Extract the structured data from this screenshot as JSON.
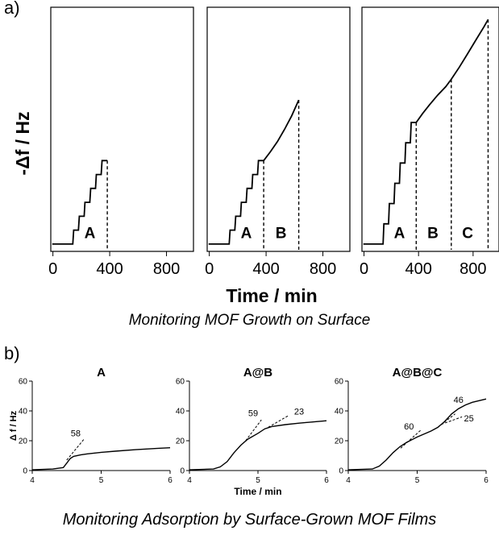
{
  "figure": {
    "panel_a_label": "a)",
    "panel_b_label": "b)",
    "caption_a": "Monitoring MOF Growth on Surface",
    "caption_b": "Monitoring Adsorption by Surface-Grown MOF Films"
  },
  "chart_data": [
    {
      "id": "a1",
      "type": "line",
      "title": "",
      "xlabel": "Time / min",
      "ylabel": "-Δf / Hz",
      "xlim": [
        -15,
        990
      ],
      "ylim": [
        0,
        100
      ],
      "xticks": [
        0,
        400,
        800
      ],
      "grid": false,
      "steps": 6,
      "t_start": 140,
      "step_dt": 40,
      "base_y": 3,
      "step_rise": 5.7,
      "markers": [
        {
          "x": 383,
          "y": 37.2
        }
      ],
      "annotations": [
        {
          "text": "A",
          "x": 260,
          "y": 5.5
        }
      ]
    },
    {
      "id": "a2",
      "type": "line",
      "title": "",
      "xlabel": "Time / min",
      "ylabel": "-Δf / Hz",
      "xlim": [
        -15,
        990
      ],
      "ylim": [
        0,
        100
      ],
      "xticks": [
        0,
        400,
        800
      ],
      "grid": false,
      "steps": 6,
      "t_start": 140,
      "step_dt": 40,
      "base_y": 3,
      "step_rise": 5.7,
      "continuation": [
        [
          383,
          37.2
        ],
        [
          430,
          40.8
        ],
        [
          480,
          45
        ],
        [
          530,
          50
        ],
        [
          580,
          55.5
        ],
        [
          630,
          62
        ]
      ],
      "markers": [
        {
          "x": 383,
          "y": 37.2
        },
        {
          "x": 630,
          "y": 62
        }
      ],
      "annotations": [
        {
          "text": "A",
          "x": 260,
          "y": 5.5
        },
        {
          "text": "B",
          "x": 505,
          "y": 5.5
        }
      ]
    },
    {
      "id": "a3",
      "type": "line",
      "title": "",
      "xlabel": "Time / min",
      "ylabel": "-Δf / Hz",
      "xlim": [
        -15,
        990
      ],
      "ylim": [
        0,
        100
      ],
      "xticks": [
        0,
        400,
        800
      ],
      "grid": false,
      "steps": 6,
      "t_start": 140,
      "step_dt": 40,
      "base_y": 3,
      "step_rise": 8.3,
      "continuation": [
        [
          383,
          52.8
        ],
        [
          430,
          56.5
        ],
        [
          480,
          60
        ],
        [
          540,
          64
        ],
        [
          600,
          67.5
        ],
        [
          640,
          70.5
        ],
        [
          700,
          75.5
        ],
        [
          760,
          81
        ],
        [
          820,
          86.5
        ],
        [
          880,
          92
        ],
        [
          910,
          95
        ]
      ],
      "markers": [
        {
          "x": 383,
          "y": 52.8
        },
        {
          "x": 640,
          "y": 70.5
        },
        {
          "x": 910,
          "y": 95
        }
      ],
      "annotations": [
        {
          "text": "A",
          "x": 260,
          "y": 5.5
        },
        {
          "text": "B",
          "x": 505,
          "y": 5.5
        },
        {
          "text": "C",
          "x": 760,
          "y": 5.5
        }
      ]
    },
    {
      "id": "b1",
      "type": "line",
      "title": "A",
      "xlabel": "",
      "ylabel": "Δ f / Hz",
      "xlim": [
        4,
        6
      ],
      "ylim": [
        0,
        60
      ],
      "xticks": [
        4,
        5,
        6
      ],
      "yticks": [
        0,
        20,
        40,
        60
      ],
      "grid": false,
      "x": [
        4.0,
        4.3,
        4.45,
        4.5,
        4.55,
        4.6,
        4.7,
        4.8,
        5.0,
        5.2,
        5.5,
        5.8,
        6.0
      ],
      "y": [
        0.5,
        1,
        2,
        5,
        8,
        9.5,
        10.5,
        11.2,
        12.2,
        13,
        14,
        14.8,
        15.3
      ],
      "tangents": [
        {
          "from": [
            4.5,
            7
          ],
          "to": [
            4.75,
            21
          ]
        }
      ],
      "annotations": [
        {
          "text": "58",
          "x": 4.63,
          "y": 23
        }
      ]
    },
    {
      "id": "b2",
      "type": "line",
      "title": "A@B",
      "xlabel": "Time / min",
      "ylabel": "",
      "xlim": [
        4,
        6
      ],
      "ylim": [
        0,
        60
      ],
      "xticks": [
        4,
        5,
        6
      ],
      "yticks": [
        0,
        20,
        40,
        60
      ],
      "grid": false,
      "x": [
        4.0,
        4.35,
        4.45,
        4.55,
        4.65,
        4.75,
        4.85,
        5.0,
        5.1,
        5.2,
        5.4,
        5.6,
        5.8,
        6.0
      ],
      "y": [
        0.5,
        1,
        2.5,
        6,
        12,
        17,
        21,
        25,
        28,
        29.5,
        30.8,
        31.8,
        32.6,
        33.4
      ],
      "tangents": [
        {
          "from": [
            4.82,
            20
          ],
          "to": [
            5.05,
            34
          ]
        },
        {
          "from": [
            5.15,
            29
          ],
          "to": [
            5.45,
            37
          ]
        }
      ],
      "annotations": [
        {
          "text": "59",
          "x": 4.93,
          "y": 36.5
        },
        {
          "text": "23",
          "x": 5.6,
          "y": 37.5
        }
      ]
    },
    {
      "id": "b3",
      "type": "line",
      "title": "A@B@C",
      "xlabel": "",
      "ylabel": "",
      "xlim": [
        4,
        6
      ],
      "ylim": [
        0,
        60
      ],
      "xticks": [
        4,
        5,
        6
      ],
      "yticks": [
        0,
        20,
        40,
        60
      ],
      "grid": false,
      "x": [
        4.0,
        4.35,
        4.45,
        4.55,
        4.65,
        4.75,
        4.85,
        5.0,
        5.2,
        5.3,
        5.4,
        5.5,
        5.6,
        5.7,
        5.8,
        6.0
      ],
      "y": [
        0.5,
        1,
        3,
        7,
        12,
        16,
        19,
        22.5,
        26.5,
        29,
        33,
        38,
        41.5,
        44,
        45.8,
        48
      ],
      "tangents": [
        {
          "from": [
            4.76,
            15
          ],
          "to": [
            5.05,
            27
          ]
        },
        {
          "from": [
            5.3,
            29
          ],
          "to": [
            5.55,
            38
          ]
        },
        {
          "from": [
            5.35,
            31
          ],
          "to": [
            5.65,
            36
          ]
        }
      ],
      "annotations": [
        {
          "text": "60",
          "x": 4.88,
          "y": 27.5
        },
        {
          "text": "46",
          "x": 5.6,
          "y": 45.5
        },
        {
          "text": "25",
          "x": 5.75,
          "y": 33
        }
      ]
    }
  ]
}
